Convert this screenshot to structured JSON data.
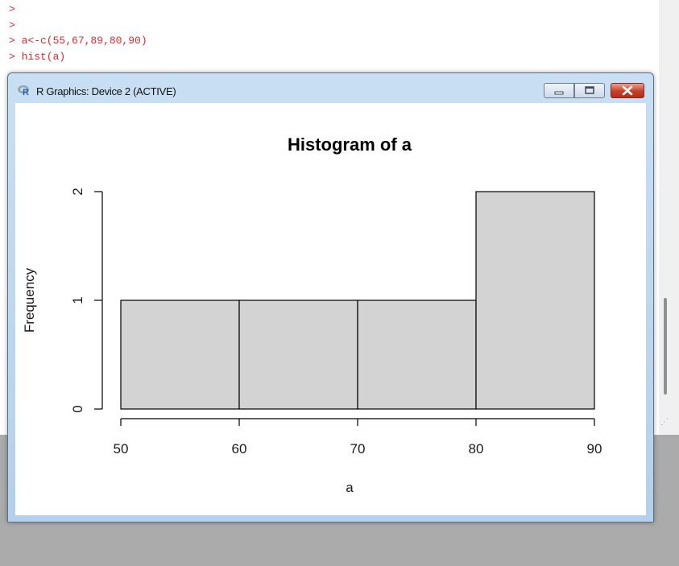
{
  "console": {
    "lines": [
      ">",
      ">",
      "> a<-c(55,67,89,80,90)",
      "> hist(a)"
    ]
  },
  "window": {
    "title": "R Graphics: Device 2 (ACTIVE)",
    "logo_letter": "R",
    "colors": {
      "title_bar": "#b3d0ec",
      "close_button": "#c73f2a",
      "bar_fill": "#d3d3d3"
    }
  },
  "chart_data": {
    "type": "bar",
    "title": "Histogram of a",
    "xlabel": "a",
    "ylabel": "Frequency",
    "bins": [
      [
        50,
        60
      ],
      [
        60,
        70
      ],
      [
        70,
        80
      ],
      [
        80,
        90
      ]
    ],
    "values": [
      1,
      1,
      1,
      2
    ],
    "xticks": [
      50,
      60,
      70,
      80,
      90
    ],
    "yticks": [
      0,
      1,
      2
    ],
    "xlim": [
      50,
      90
    ],
    "ylim": [
      0,
      2
    ],
    "grid": false
  }
}
